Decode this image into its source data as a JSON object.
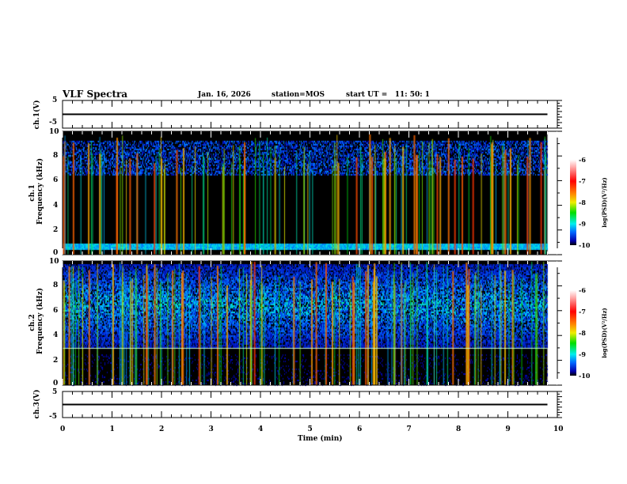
{
  "header": {
    "title": "VLF Spectra",
    "date": "Jan. 16, 2026",
    "station": "station=MOS",
    "start": "start UT =   11: 50: 1"
  },
  "panels": {
    "ch1_wave": {
      "ylabel": "ch.1(V)",
      "yticks": [
        "5",
        "-5"
      ]
    },
    "ch1_spec": {
      "ylabel1": "ch.1",
      "ylabel2": "Frequency (kHz)",
      "yticks": [
        "10",
        "8",
        "6",
        "4",
        "2",
        "0"
      ]
    },
    "ch2_spec": {
      "ylabel1": "ch.2",
      "ylabel2": "Frequency (kHz)",
      "yticks": [
        "10",
        "8",
        "6",
        "4",
        "2",
        "0"
      ]
    },
    "ch3_wave": {
      "ylabel": "ch.3(V)",
      "yticks": [
        "5",
        "-5"
      ]
    }
  },
  "colorbar": {
    "label": "log(PSD)(V²/Hz)",
    "ticks": [
      "-6",
      "-7",
      "-8",
      "-9",
      "-10"
    ]
  },
  "chart_data": {
    "type": "heatmap",
    "title": "VLF Spectra",
    "xlabel": "Time (min)",
    "xticks": [
      "0",
      "1",
      "2",
      "3",
      "4",
      "5",
      "6",
      "7",
      "8",
      "9",
      "10"
    ],
    "xlim": [
      0,
      10
    ],
    "frequency_range_khz": [
      0,
      10
    ],
    "waveform_range_v": [
      -5,
      5
    ],
    "color_range_log_psd": [
      -10,
      -6
    ],
    "data_end_min": 9.8,
    "series": [
      {
        "name": "ch.1",
        "description_band_khz": [
          [
            0.4,
            0.8
          ],
          [
            6.5,
            9.2
          ]
        ]
      },
      {
        "name": "ch.2",
        "description_band_khz": [
          [
            3,
            10
          ]
        ],
        "line_khz": 3.0
      }
    ]
  }
}
